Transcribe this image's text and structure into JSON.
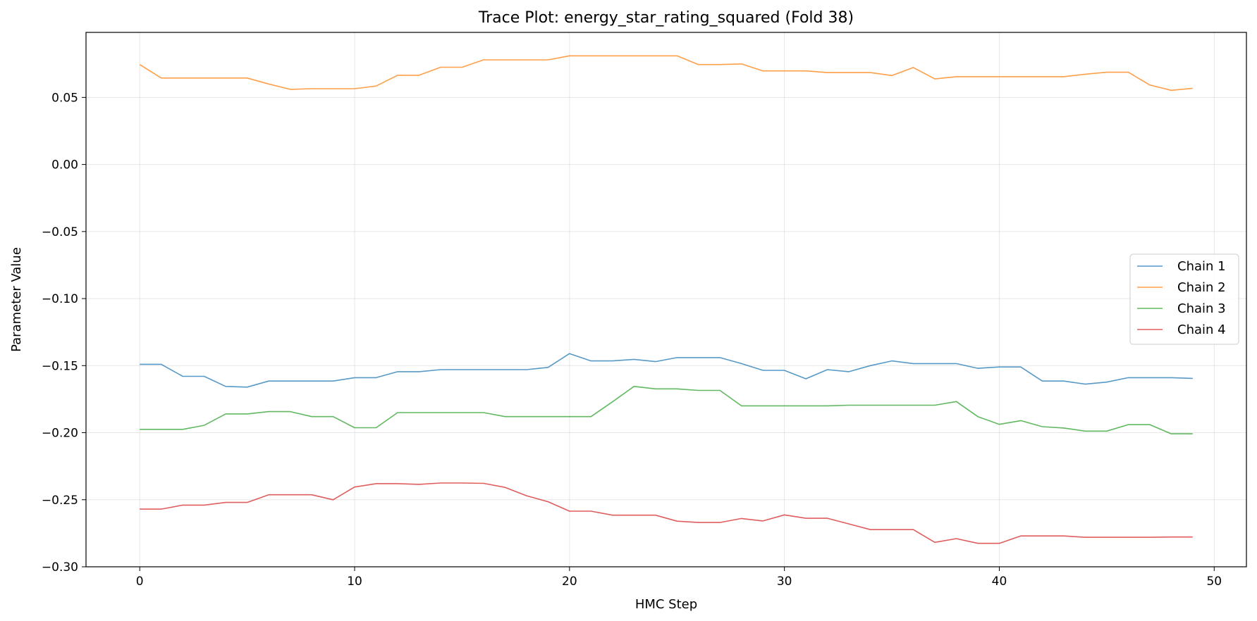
{
  "chart_data": {
    "type": "line",
    "title": "Trace Plot: energy_star_rating_squared (Fold 38)",
    "xlabel": "HMC Step",
    "ylabel": "Parameter Value",
    "xlim": [
      -2.5,
      51.5
    ],
    "ylim": [
      -0.3,
      0.0985
    ],
    "xticks": [
      0,
      10,
      20,
      30,
      40,
      50
    ],
    "yticks": [
      -0.3,
      -0.25,
      -0.2,
      -0.15,
      -0.1,
      -0.05,
      0.0,
      0.05
    ],
    "grid": true,
    "legend_position": "center-right",
    "x": [
      0,
      1,
      2,
      3,
      4,
      5,
      6,
      7,
      8,
      9,
      10,
      11,
      12,
      13,
      14,
      15,
      16,
      17,
      18,
      19,
      20,
      21,
      22,
      23,
      24,
      25,
      26,
      27,
      28,
      29,
      30,
      31,
      32,
      33,
      34,
      35,
      36,
      37,
      38,
      39,
      40,
      41,
      42,
      43,
      44,
      45,
      46,
      47,
      48,
      49
    ],
    "series": [
      {
        "name": "Chain 1",
        "color": "#1f77b4",
        "values": [
          -0.149,
          -0.149,
          -0.158,
          -0.158,
          -0.1655,
          -0.166,
          -0.1615,
          -0.1615,
          -0.1615,
          -0.1615,
          -0.159,
          -0.159,
          -0.1545,
          -0.1545,
          -0.153,
          -0.153,
          -0.153,
          -0.153,
          -0.153,
          -0.1513,
          -0.141,
          -0.1465,
          -0.1465,
          -0.1453,
          -0.147,
          -0.144,
          -0.144,
          -0.144,
          -0.1485,
          -0.1535,
          -0.1535,
          -0.1598,
          -0.153,
          -0.1545,
          -0.15,
          -0.1465,
          -0.1485,
          -0.1485,
          -0.1485,
          -0.152,
          -0.151,
          -0.151,
          -0.1615,
          -0.1615,
          -0.1638,
          -0.1623,
          -0.159,
          -0.159,
          -0.159,
          -0.1595
        ]
      },
      {
        "name": "Chain 2",
        "color": "#ff7f0e",
        "values": [
          0.0745,
          0.0645,
          0.0645,
          0.0645,
          0.0645,
          0.0645,
          0.06,
          0.056,
          0.0565,
          0.0565,
          0.0565,
          0.0585,
          0.0665,
          0.0665,
          0.0725,
          0.0725,
          0.078,
          0.078,
          0.078,
          0.078,
          0.081,
          0.081,
          0.081,
          0.081,
          0.081,
          0.081,
          0.0745,
          0.0745,
          0.075,
          0.0698,
          0.0698,
          0.0698,
          0.0685,
          0.0685,
          0.0685,
          0.0663,
          0.0723,
          0.0638,
          0.0655,
          0.0655,
          0.0655,
          0.0655,
          0.0655,
          0.0655,
          0.0673,
          0.0688,
          0.0688,
          0.0593,
          0.0553,
          0.0568
        ]
      },
      {
        "name": "Chain 3",
        "color": "#2ca02c",
        "values": [
          -0.1975,
          -0.1975,
          -0.1975,
          -0.1945,
          -0.186,
          -0.186,
          -0.1843,
          -0.1843,
          -0.188,
          -0.188,
          -0.1963,
          -0.1963,
          -0.185,
          -0.185,
          -0.185,
          -0.185,
          -0.185,
          -0.188,
          -0.188,
          -0.188,
          -0.188,
          -0.188,
          -0.177,
          -0.1655,
          -0.1673,
          -0.1673,
          -0.1685,
          -0.1685,
          -0.18,
          -0.18,
          -0.18,
          -0.18,
          -0.18,
          -0.1795,
          -0.1795,
          -0.1795,
          -0.1795,
          -0.1795,
          -0.1768,
          -0.188,
          -0.1938,
          -0.191,
          -0.1955,
          -0.1965,
          -0.1988,
          -0.1988,
          -0.194,
          -0.194,
          -0.2008,
          -0.2008
        ]
      },
      {
        "name": "Chain 4",
        "color": "#d62728",
        "values": [
          -0.257,
          -0.257,
          -0.254,
          -0.254,
          -0.252,
          -0.252,
          -0.2463,
          -0.2463,
          -0.2463,
          -0.25,
          -0.2405,
          -0.238,
          -0.238,
          -0.2385,
          -0.2375,
          -0.2375,
          -0.2378,
          -0.2408,
          -0.247,
          -0.2515,
          -0.2585,
          -0.2585,
          -0.2615,
          -0.2615,
          -0.2615,
          -0.266,
          -0.267,
          -0.267,
          -0.264,
          -0.2658,
          -0.2613,
          -0.2638,
          -0.2638,
          -0.268,
          -0.2723,
          -0.2723,
          -0.2723,
          -0.2818,
          -0.279,
          -0.2825,
          -0.2825,
          -0.277,
          -0.277,
          -0.277,
          -0.278,
          -0.278,
          -0.278,
          -0.278,
          -0.2778,
          -0.2778
        ]
      }
    ]
  }
}
